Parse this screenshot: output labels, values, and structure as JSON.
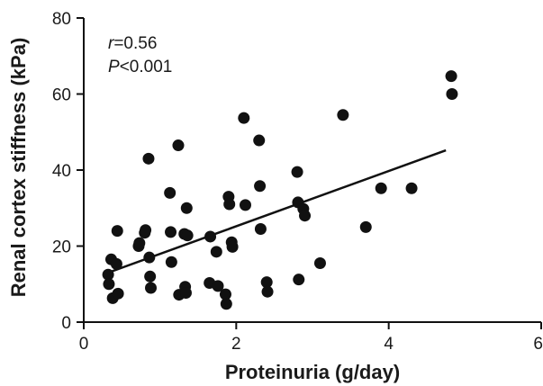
{
  "chart_data": {
    "type": "scatter",
    "xlabel": "Proteinuria (g/day)",
    "ylabel": "Renal cortex stiffness (kPa)",
    "xlim": [
      0,
      6
    ],
    "ylim": [
      0,
      80
    ],
    "xticks": [
      0,
      2,
      4,
      6
    ],
    "yticks": [
      0,
      20,
      40,
      60,
      80
    ],
    "xtick_labels": [
      "0",
      "2",
      "4",
      "6"
    ],
    "ytick_labels": [
      "0",
      "20",
      "40",
      "60",
      "80"
    ],
    "grid": false,
    "annotations": {
      "r_var": "r",
      "r_value": "=0.56",
      "p_var": "P",
      "p_value": "<0.001"
    },
    "colors": {
      "points": "#111111",
      "line": "#111111",
      "axes": "#111111"
    },
    "series": [
      {
        "points": [
          [
            0.32,
            12.5
          ],
          [
            0.33,
            10.0
          ],
          [
            0.36,
            16.5
          ],
          [
            0.38,
            6.3
          ],
          [
            0.43,
            15.3
          ],
          [
            0.44,
            24.0
          ],
          [
            0.45,
            7.5
          ],
          [
            0.72,
            20.0
          ],
          [
            0.73,
            20.8
          ],
          [
            0.8,
            23.5
          ],
          [
            0.81,
            24.2
          ],
          [
            0.85,
            43.0
          ],
          [
            0.86,
            17.0
          ],
          [
            0.87,
            12.0
          ],
          [
            0.88,
            9.0
          ],
          [
            1.13,
            34.0
          ],
          [
            1.14,
            23.7
          ],
          [
            1.15,
            15.8
          ],
          [
            1.24,
            46.5
          ],
          [
            1.25,
            7.2
          ],
          [
            1.32,
            23.2
          ],
          [
            1.33,
            9.3
          ],
          [
            1.34,
            7.7
          ],
          [
            1.35,
            30.0
          ],
          [
            1.36,
            22.8
          ],
          [
            1.65,
            10.3
          ],
          [
            1.66,
            22.5
          ],
          [
            1.74,
            18.5
          ],
          [
            1.76,
            9.5
          ],
          [
            1.86,
            7.3
          ],
          [
            1.87,
            4.8
          ],
          [
            1.9,
            33.0
          ],
          [
            1.91,
            31.0
          ],
          [
            1.94,
            21.0
          ],
          [
            1.95,
            19.8
          ],
          [
            2.1,
            53.7
          ],
          [
            2.12,
            30.8
          ],
          [
            2.3,
            47.8
          ],
          [
            2.31,
            35.8
          ],
          [
            2.32,
            24.5
          ],
          [
            2.4,
            10.5
          ],
          [
            2.41,
            8.0
          ],
          [
            2.8,
            39.5
          ],
          [
            2.81,
            31.5
          ],
          [
            2.82,
            11.2
          ],
          [
            2.88,
            29.8
          ],
          [
            2.9,
            28.0
          ],
          [
            3.1,
            15.5
          ],
          [
            3.4,
            54.5
          ],
          [
            3.7,
            25.0
          ],
          [
            3.9,
            35.2
          ],
          [
            4.3,
            35.2
          ],
          [
            4.82,
            64.7
          ],
          [
            4.83,
            60.0
          ]
        ]
      }
    ],
    "trendline": {
      "x": [
        0.32,
        4.75
      ],
      "y": [
        13.0,
        45.2
      ]
    }
  }
}
